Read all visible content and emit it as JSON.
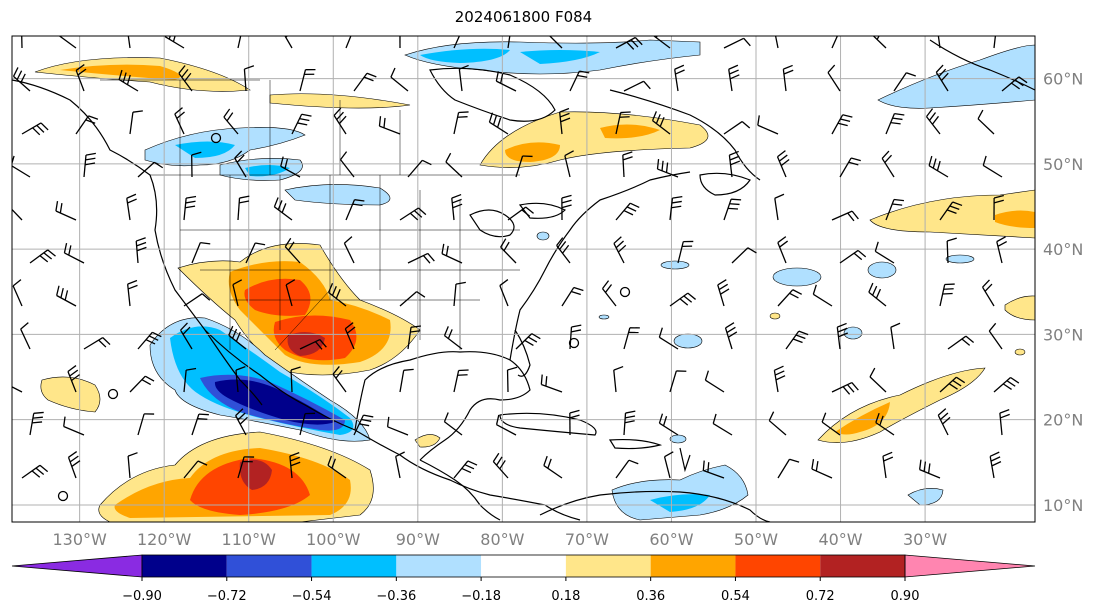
{
  "title": "2024061800 F084",
  "map": {
    "lon_range": [
      -138,
      -17
    ],
    "lat_range": [
      8,
      65
    ],
    "lon_ticks": [
      {
        "lon": -130,
        "label": "130°W"
      },
      {
        "lon": -120,
        "label": "120°W"
      },
      {
        "lon": -110,
        "label": "110°W"
      },
      {
        "lon": -100,
        "label": "100°W"
      },
      {
        "lon": -90,
        "label": "90°W"
      },
      {
        "lon": -80,
        "label": "80°W"
      },
      {
        "lon": -70,
        "label": "70°W"
      },
      {
        "lon": -60,
        "label": "60°W"
      },
      {
        "lon": -50,
        "label": "50°W"
      },
      {
        "lon": -40,
        "label": "40°W"
      },
      {
        "lon": -30,
        "label": "30°W"
      }
    ],
    "lat_ticks": [
      {
        "lat": 60,
        "label": "60°N"
      },
      {
        "lat": 50,
        "label": "50°N"
      },
      {
        "lat": 40,
        "label": "40°N"
      },
      {
        "lat": 30,
        "label": "30°N"
      },
      {
        "lat": 20,
        "label": "20°N"
      },
      {
        "lat": 10,
        "label": "10°N"
      }
    ],
    "gridlines": true,
    "features": [
      "coastlines",
      "country borders",
      "US state borders",
      "wind barbs",
      "filled anomaly contours"
    ]
  },
  "colorbar": {
    "extend": "both",
    "levels": [
      "−0.90",
      "−0.72",
      "−0.54",
      "−0.36",
      "−0.18",
      "0.18",
      "0.36",
      "0.54",
      "0.72",
      "0.90"
    ],
    "colors": [
      "#8a2be2",
      "#00008b",
      "#3050d8",
      "#00bfff",
      "#b0e0ff",
      "#ffffff",
      "#ffe68a",
      "#ffa500",
      "#ff4500",
      "#b22222",
      "#ff85b0"
    ]
  },
  "colors": {
    "land_line": "#000000",
    "grid": "#b0b0b0",
    "tick_label": "#808080"
  }
}
